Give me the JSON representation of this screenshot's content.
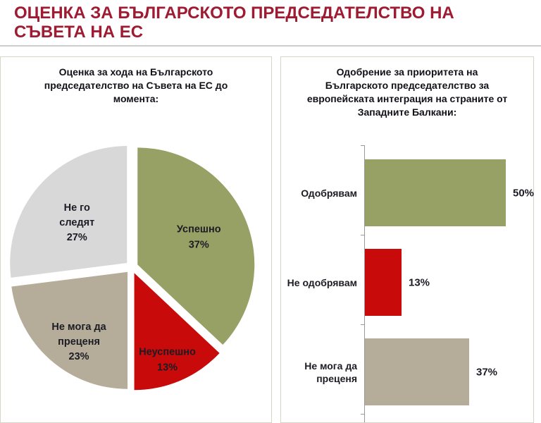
{
  "page": {
    "title": "ОЦЕНКА ЗА БЪЛГАРСКОТО ПРЕДСЕДАТЕЛСТВО НА СЪВЕТА НА ЕС",
    "title_lines": [
      "ОЦЕНКА ЗА БЪЛГАРСКОТО ПРЕДСЕДАТЕЛСТВО НА",
      "СЪВЕТА НА ЕС"
    ]
  },
  "colors": {
    "title_red": "#9E1B32",
    "positive_green": "#97A065",
    "negative_red": "#C90A0A",
    "neutral_beige": "#B5AC99",
    "not_following_gray": "#D8D8D8",
    "panel_border": "#D6D6C8",
    "label_text": "#1C1C24"
  },
  "chart_data": [
    {
      "type": "pie",
      "title": "Оценка за хода на Българското председателство на Съвета на ЕС до момента:",
      "title_lines": [
        "Оценка за хода на Българското",
        "председателство на Съвета на ЕС до",
        "момента:"
      ],
      "start_angle_deg": 0,
      "clockwise": true,
      "exploded": true,
      "legend": "none",
      "slices": [
        {
          "label": "Успешно",
          "label_lines": [
            "Успешно"
          ],
          "value": 37,
          "value_label": "37%",
          "color": "#97A065"
        },
        {
          "label": "Неуспешно",
          "label_lines": [
            "Неуспешно"
          ],
          "value": 13,
          "value_label": "13%",
          "color": "#C90A0A"
        },
        {
          "label": "Не мога да преценя",
          "label_lines": [
            "Не мога да",
            "преценя"
          ],
          "value": 23,
          "value_label": "23%",
          "color": "#B5AC99"
        },
        {
          "label": "Не го следят",
          "label_lines": [
            "Не го",
            "следят"
          ],
          "value": 27,
          "value_label": "27%",
          "color": "#D8D8D8"
        }
      ]
    },
    {
      "type": "bar",
      "orientation": "horizontal",
      "title": "Одобрение за приоритета на Българското председателство за европейската интеграция на страните от Западните Балкани:",
      "title_lines": [
        "Одобрение за приоритета на",
        "Българското председателство за",
        "европейската интеграция на страните от",
        "Западните Балкани:"
      ],
      "categories": [
        "Одобрявам",
        "Не одобрявам",
        "Не мога да преценя"
      ],
      "category_lines": [
        [
          "Одобрявам"
        ],
        [
          "Не одобрявам"
        ],
        [
          "Не мога да",
          "преценя"
        ]
      ],
      "values": [
        50,
        13,
        37
      ],
      "value_labels": [
        "50%",
        "13%",
        "37%"
      ],
      "colors": [
        "#97A065",
        "#C90A0A",
        "#B5AC99"
      ],
      "grid": "off",
      "legend": "none"
    }
  ]
}
